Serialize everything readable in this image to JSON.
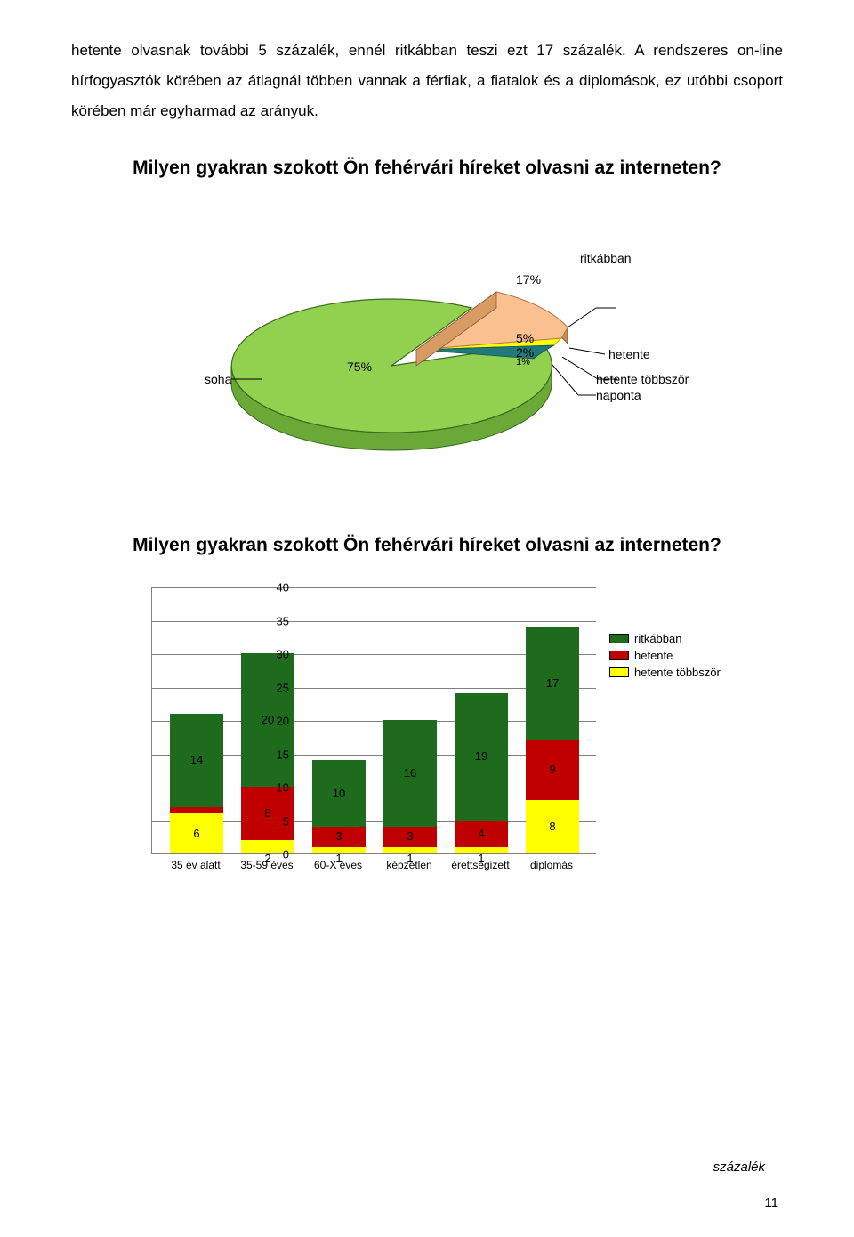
{
  "intro": "hetente olvasnak további 5 százalék, ennél ritkábban teszi ezt 17 százalék. A rendszeres on-line hírfogyasztók körében az átlagnál többen vannak a férfiak, a fiatalok és a diplomások, ez utóbbi csoport körében már egyharmad az arányuk.",
  "pie": {
    "title": "Milyen gyakran szokott Ön fehérvári híreket olvasni az interneten?",
    "slices": [
      {
        "label": "ritkábban",
        "value": 17,
        "color": "#fac08f"
      },
      {
        "label": "hetente",
        "value": 5,
        "color": "#1f7a7a"
      },
      {
        "label": "hetente többször",
        "value": 2,
        "color": "#ffff00"
      },
      {
        "label": "naponta",
        "value": 1,
        "color": "#9b5b2e"
      },
      {
        "label": "soha",
        "value": 75,
        "color": "#92d050"
      }
    ],
    "outline_color": "#3a6b1f",
    "wedge_side_color": "#6aa838",
    "pulled_side_color": "#c98a56",
    "pct_labels": {
      "p17": "17%",
      "p5": "5%",
      "p2": "2%",
      "p1": "1%",
      "p75": "75%"
    },
    "leaders": {
      "soha": "soha",
      "ritkabban": "ritkábban",
      "hetente": "hetente",
      "hetente_tobbszor": "hetente többször",
      "naponta": "naponta"
    }
  },
  "bar": {
    "title": "Milyen gyakran szokott Ön fehérvári híreket olvasni az interneten?",
    "ymax": 40,
    "ytick_step": 5,
    "yticks": [
      0,
      5,
      10,
      15,
      20,
      25,
      30,
      35,
      40
    ],
    "categories": [
      "35 év alatt",
      "35-59 éves",
      "60-X éves",
      "képzetlen",
      "érettségizett",
      "diplomás"
    ],
    "series": [
      {
        "name": "hetente többször",
        "color": "#ffff00"
      },
      {
        "name": "hetente",
        "color": "#c00000"
      },
      {
        "name": "ritkábban",
        "color": "#1e6b1e"
      }
    ],
    "legend_order": [
      "ritkábban",
      "hetente",
      "hetente többször"
    ],
    "legend_colors": {
      "ritkábban": "#1e6b1e",
      "hetente": "#c00000",
      "hetente többször": "#ffff00"
    },
    "stacks": [
      {
        "ht": 6,
        "h": 1,
        "r": 14
      },
      {
        "ht": 2,
        "h": 8,
        "r": 20
      },
      {
        "ht": 1,
        "h": 3,
        "r": 10
      },
      {
        "ht": 1,
        "h": 3,
        "r": 16
      },
      {
        "ht": 1,
        "h": 4,
        "r": 19
      },
      {
        "ht": 8,
        "h": 9,
        "r": 17
      }
    ],
    "grid_color": "#7f7f7f"
  },
  "footer": "százalék",
  "page": "11"
}
